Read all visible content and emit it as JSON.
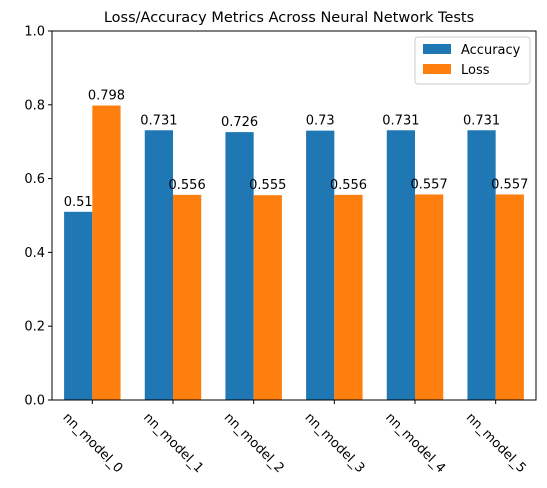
{
  "chart_data": {
    "type": "bar",
    "title": "Loss/Accuracy Metrics Across Neural Network Tests",
    "xlabel": "",
    "ylabel": "",
    "categories": [
      "nn_model_0",
      "nn_model_1",
      "nn_model_2",
      "nn_model_3",
      "nn_model_4",
      "nn_model_5"
    ],
    "series": [
      {
        "name": "Accuracy",
        "color": "#1f77b4",
        "values": [
          0.51,
          0.731,
          0.726,
          0.73,
          0.731,
          0.731
        ]
      },
      {
        "name": "Loss",
        "color": "#ff7f0e",
        "values": [
          0.798,
          0.556,
          0.555,
          0.556,
          0.557,
          0.557
        ]
      }
    ],
    "ylim": [
      0,
      1.0
    ],
    "yticks": [
      "0.0",
      "0.2",
      "0.4",
      "0.6",
      "0.8",
      "1.0"
    ],
    "grid": false,
    "legend_position": "top-right"
  }
}
